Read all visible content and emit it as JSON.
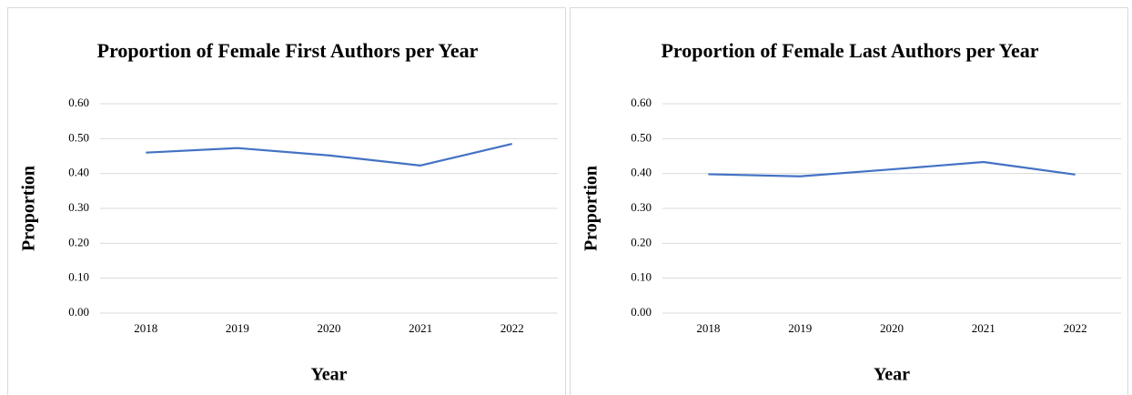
{
  "chart_data": [
    {
      "type": "line",
      "title": "Proportion of Female First Authors per Year",
      "xlabel": "Year",
      "ylabel": "Proportion",
      "categories": [
        "2018",
        "2019",
        "2020",
        "2021",
        "2022"
      ],
      "series": [
        {
          "name": "Proportion",
          "color": "#4472c4",
          "values": [
            0.46,
            0.473,
            0.452,
            0.423,
            0.485
          ]
        }
      ],
      "ylim": [
        0,
        0.6
      ],
      "yticks": [
        {
          "value": 0,
          "label": "0.00"
        },
        {
          "value": 0.1,
          "label": "0.10"
        },
        {
          "value": 0.2,
          "label": "0.20"
        },
        {
          "value": 0.3,
          "label": "0.30"
        },
        {
          "value": 0.4,
          "label": "0.40"
        },
        {
          "value": 0.5,
          "label": "0.50"
        },
        {
          "value": 0.6,
          "label": "0.60"
        }
      ],
      "grid": true
    },
    {
      "type": "line",
      "title": "Proportion of Female Last Authors per Year",
      "xlabel": "Year",
      "ylabel": "Proportion",
      "categories": [
        "2018",
        "2019",
        "2020",
        "2021",
        "2022"
      ],
      "series": [
        {
          "name": "Proportion",
          "color": "#4472c4",
          "values": [
            0.398,
            0.392,
            0.412,
            0.433,
            0.397
          ]
        }
      ],
      "ylim": [
        0,
        0.6
      ],
      "yticks": [
        {
          "value": 0,
          "label": "0.00"
        },
        {
          "value": 0.1,
          "label": "0.10"
        },
        {
          "value": 0.2,
          "label": "0.20"
        },
        {
          "value": 0.3,
          "label": "0.30"
        },
        {
          "value": 0.4,
          "label": "0.40"
        },
        {
          "value": 0.5,
          "label": "0.50"
        },
        {
          "value": 0.6,
          "label": "0.60"
        }
      ],
      "grid": true
    }
  ]
}
